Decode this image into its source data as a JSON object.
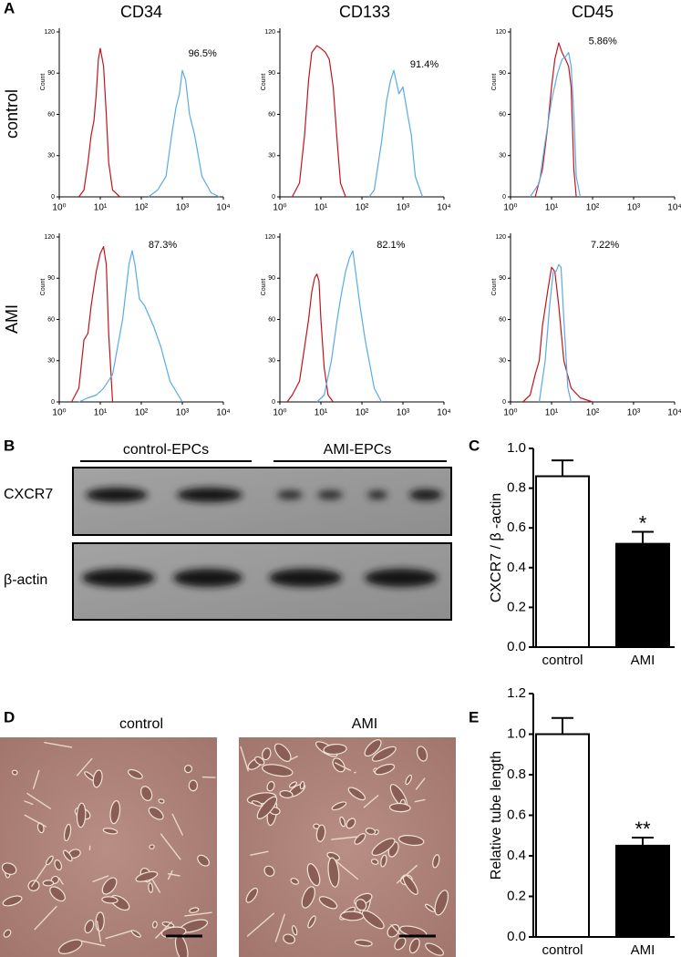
{
  "panel_labels": [
    "A",
    "B",
    "C",
    "D",
    "E"
  ],
  "flow": {
    "columns": [
      "CD34",
      "CD133",
      "CD45"
    ],
    "rows": [
      "control",
      "AMI"
    ]
  },
  "chart_data": [
    {
      "type": "line",
      "ylabel": "Count",
      "annotation": "96.5%",
      "xscale": "log",
      "xlim": [
        1,
        10000
      ],
      "xticks": [
        {
          "value": 1,
          "label": "10⁰"
        },
        {
          "value": 10,
          "label": "10¹"
        },
        {
          "value": 100,
          "label": "10²"
        },
        {
          "value": 1000,
          "label": "10³"
        },
        {
          "value": 10000,
          "label": "10⁴"
        }
      ],
      "ylim": [
        0,
        120
      ],
      "yticks": [
        0,
        30,
        60,
        90,
        120
      ],
      "series": [
        {
          "color": "#c0141c",
          "x": [
            3,
            4,
            5,
            6,
            7,
            8,
            9,
            10,
            12,
            14,
            16,
            20,
            30
          ],
          "values": [
            0,
            5,
            25,
            45,
            55,
            75,
            100,
            108,
            95,
            60,
            25,
            5,
            0
          ]
        },
        {
          "color": "#5aaae6",
          "x": [
            150,
            250,
            400,
            550,
            700,
            850,
            1000,
            1200,
            1500,
            2000,
            3000,
            5000,
            8000
          ],
          "values": [
            0,
            5,
            15,
            45,
            65,
            75,
            92,
            85,
            60,
            45,
            15,
            3,
            0
          ]
        }
      ]
    },
    {
      "type": "line",
      "ylabel": "Count",
      "annotation": "91.4%",
      "xscale": "log",
      "xlim": [
        1,
        10000
      ],
      "xticks": [
        {
          "value": 1,
          "label": "10⁰"
        },
        {
          "value": 10,
          "label": "10¹"
        },
        {
          "value": 100,
          "label": "10²"
        },
        {
          "value": 1000,
          "label": "10³"
        },
        {
          "value": 10000,
          "label": "10⁴"
        }
      ],
      "ylim": [
        0,
        120
      ],
      "yticks": [
        0,
        30,
        60,
        90,
        120
      ],
      "series": [
        {
          "color": "#c0141c",
          "x": [
            2,
            3,
            4,
            5,
            6,
            8,
            10,
            13,
            16,
            20,
            25,
            30,
            40
          ],
          "values": [
            0,
            10,
            45,
            85,
            105,
            110,
            108,
            105,
            100,
            80,
            40,
            10,
            0
          ]
        },
        {
          "color": "#5aaae6",
          "x": [
            150,
            200,
            300,
            400,
            500,
            600,
            800,
            1000,
            1300,
            1600,
            2000,
            3000
          ],
          "values": [
            0,
            5,
            40,
            70,
            85,
            92,
            75,
            80,
            60,
            45,
            15,
            0
          ]
        }
      ]
    },
    {
      "type": "line",
      "ylabel": "Count",
      "annotation": "5.86%",
      "xscale": "log",
      "xlim": [
        1,
        10000
      ],
      "xticks": [
        {
          "value": 1,
          "label": "10⁰"
        },
        {
          "value": 10,
          "label": "10¹"
        },
        {
          "value": 100,
          "label": "10²"
        },
        {
          "value": 1000,
          "label": "10³"
        },
        {
          "value": 10000,
          "label": "10⁴"
        }
      ],
      "ylim": [
        0,
        120
      ],
      "yticks": [
        0,
        30,
        60,
        90,
        120
      ],
      "series": [
        {
          "color": "#c0141c",
          "x": [
            4,
            6,
            8,
            10,
            12,
            15,
            18,
            22,
            26,
            30,
            35,
            40
          ],
          "values": [
            0,
            20,
            50,
            80,
            100,
            112,
            105,
            100,
            95,
            80,
            20,
            0
          ]
        },
        {
          "color": "#5aaae6",
          "x": [
            3,
            5,
            7,
            10,
            14,
            18,
            22,
            26,
            30,
            35,
            40,
            50
          ],
          "values": [
            0,
            10,
            40,
            70,
            90,
            100,
            102,
            105,
            95,
            60,
            15,
            0
          ]
        }
      ]
    },
    {
      "type": "line",
      "ylabel": "Count",
      "annotation": "87.3%",
      "xscale": "log",
      "xlim": [
        1,
        10000
      ],
      "xticks": [
        {
          "value": 1,
          "label": "10⁰"
        },
        {
          "value": 10,
          "label": "10¹"
        },
        {
          "value": 100,
          "label": "10²"
        },
        {
          "value": 1000,
          "label": "10³"
        },
        {
          "value": 10000,
          "label": "10⁴"
        }
      ],
      "ylim": [
        0,
        120
      ],
      "yticks": [
        0,
        30,
        60,
        90,
        120
      ],
      "series": [
        {
          "color": "#c0141c",
          "x": [
            2,
            3,
            4,
            5,
            6,
            8,
            10,
            12,
            14,
            16,
            20
          ],
          "values": [
            0,
            10,
            45,
            50,
            70,
            95,
            108,
            113,
            100,
            50,
            0
          ]
        },
        {
          "color": "#5aaae6",
          "x": [
            3,
            5,
            8,
            12,
            20,
            35,
            50,
            60,
            70,
            90,
            120,
            200,
            300,
            500,
            1000
          ],
          "values": [
            0,
            3,
            5,
            10,
            20,
            60,
            100,
            110,
            100,
            75,
            70,
            55,
            40,
            15,
            0
          ]
        }
      ]
    },
    {
      "type": "line",
      "ylabel": "Count",
      "annotation": "82.1%",
      "xscale": "log",
      "xlim": [
        1,
        10000
      ],
      "xticks": [
        {
          "value": 1,
          "label": "10⁰"
        },
        {
          "value": 10,
          "label": "10¹"
        },
        {
          "value": 100,
          "label": "10²"
        },
        {
          "value": 1000,
          "label": "10³"
        },
        {
          "value": 10000,
          "label": "10⁴"
        }
      ],
      "ylim": [
        0,
        120
      ],
      "yticks": [
        0,
        30,
        60,
        90,
        120
      ],
      "series": [
        {
          "color": "#c0141c",
          "x": [
            1.5,
            2,
            3,
            4,
            5,
            6,
            7,
            8,
            9,
            10,
            12,
            15,
            20
          ],
          "values": [
            0,
            5,
            15,
            40,
            60,
            80,
            90,
            93,
            88,
            60,
            25,
            5,
            0
          ]
        },
        {
          "color": "#5aaae6",
          "x": [
            8,
            12,
            18,
            25,
            30,
            40,
            50,
            60,
            70,
            90,
            120,
            200,
            300
          ],
          "values": [
            0,
            5,
            30,
            60,
            75,
            95,
            105,
            110,
            95,
            70,
            45,
            10,
            0
          ]
        }
      ]
    },
    {
      "type": "line",
      "ylabel": "Count",
      "annotation": "7.22%",
      "xscale": "log",
      "xlim": [
        1,
        10000
      ],
      "xticks": [
        {
          "value": 1,
          "label": "10⁰"
        },
        {
          "value": 10,
          "label": "10¹"
        },
        {
          "value": 100,
          "label": "10²"
        },
        {
          "value": 1000,
          "label": "10³"
        },
        {
          "value": 10000,
          "label": "10⁴"
        }
      ],
      "ylim": [
        0,
        120
      ],
      "yticks": [
        0,
        30,
        60,
        90,
        120
      ],
      "series": [
        {
          "color": "#c0141c",
          "x": [
            2,
            3,
            4,
            5,
            6,
            8,
            10,
            12,
            15,
            20,
            30,
            50,
            100
          ],
          "values": [
            0,
            5,
            20,
            30,
            55,
            80,
            98,
            95,
            70,
            30,
            10,
            3,
            0
          ]
        },
        {
          "color": "#5aaae6",
          "x": [
            5,
            7,
            9,
            11,
            13,
            15,
            17,
            20,
            25,
            30
          ],
          "values": [
            0,
            30,
            70,
            95,
            95,
            100,
            98,
            60,
            10,
            0
          ]
        }
      ]
    },
    {
      "type": "bar",
      "ylabel": "CXCR7 / β -actin",
      "categories": [
        "control",
        "AMI"
      ],
      "values": [
        0.86,
        0.52
      ],
      "errors": [
        0.08,
        0.06
      ],
      "colors": [
        "#ffffff",
        "#000000"
      ],
      "annotation": "*",
      "ylim": [
        0,
        1
      ],
      "yticks": [
        {
          "value": 0,
          "label": "0.0"
        },
        0.2,
        0.4,
        0.6,
        0.8,
        {
          "value": 1,
          "label": "1.0"
        }
      ]
    },
    {
      "type": "bar",
      "ylabel": "Relative tube length",
      "categories": [
        "control",
        "AMI"
      ],
      "values": [
        1.0,
        0.45
      ],
      "errors": [
        0.08,
        0.04
      ],
      "colors": [
        "#ffffff",
        "#000000"
      ],
      "annotation": "**",
      "ylim": [
        0,
        1.2
      ],
      "yticks": [
        {
          "value": 0,
          "label": "0.0"
        },
        0.2,
        0.4,
        0.6,
        0.8,
        {
          "value": 1,
          "label": "1.0"
        },
        1.2
      ]
    }
  ],
  "blot": {
    "groups": [
      "control-EPCs",
      "AMI-EPCs"
    ],
    "rows": [
      "CXCR7",
      "β-actin"
    ]
  },
  "micrographs": [
    "control",
    "AMI"
  ]
}
